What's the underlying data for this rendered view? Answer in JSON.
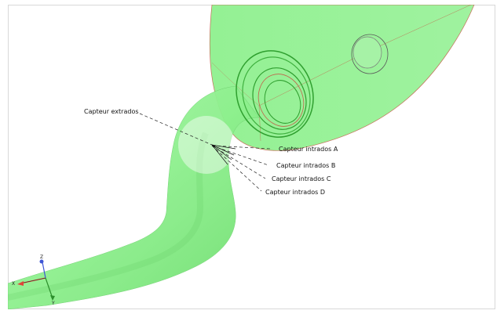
{
  "scene": {
    "body_color": "#7fe87f",
    "body_fill_opacity": 0.75,
    "edge_color": "#c0644a",
    "highlight_color": "#ffffff"
  },
  "annotations": {
    "extrados": "Capteur extrados",
    "intrados_a": "Capteur intrados A",
    "intrados_b": "Capteur intrados B",
    "intrados_c": "Capteur intrados C",
    "intrados_d": "Capteur intrados D"
  },
  "axes": {
    "x_label": "X",
    "y_label": "Y",
    "z_label": "Z",
    "x_color": "#e0443a",
    "y_color": "#2c8f2c",
    "z_color": "#3f56d6"
  }
}
